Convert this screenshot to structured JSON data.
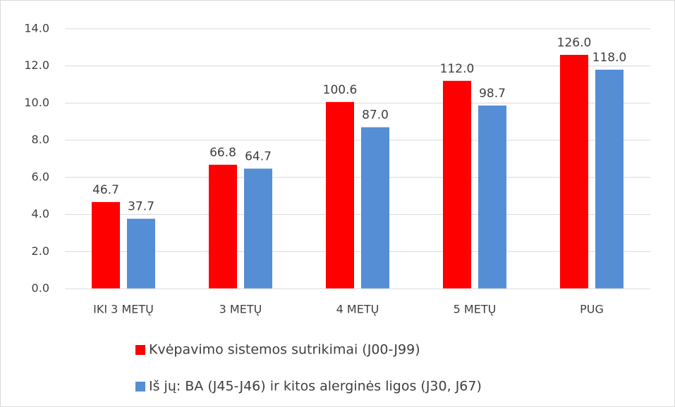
{
  "chart_data": {
    "type": "bar",
    "categories": [
      "IKI 3 METŲ",
      "3 METŲ",
      "4 METŲ",
      "5 METŲ",
      "PUG"
    ],
    "series": [
      {
        "name": "Kvėpavimo sistemos sutrikimai (J00-J99)",
        "color": "#ff0000",
        "values": [
          4.67,
          6.68,
          10.06,
          11.2,
          12.6
        ],
        "value_labels": [
          "46.7",
          "66.8",
          "100.6",
          "112.0",
          "126.0"
        ]
      },
      {
        "name": "Iš jų: BA (J45-J46) ir kitos alerginės ligos (J30, J67)",
        "color": "#558ed5",
        "values": [
          3.77,
          6.47,
          8.7,
          9.87,
          11.8
        ],
        "value_labels": [
          "37.7",
          "64.7",
          "87.0",
          "98.7",
          "118.0"
        ]
      }
    ],
    "ylim": [
      0,
      14
    ],
    "yticks": [
      {
        "value": 0,
        "label": "0.0"
      },
      {
        "value": 2,
        "label": "2.0"
      },
      {
        "value": 4,
        "label": "4.0"
      },
      {
        "value": 6,
        "label": "6.0"
      },
      {
        "value": 8,
        "label": "8.0"
      },
      {
        "value": 10,
        "label": "10.0"
      },
      {
        "value": 12,
        "label": "12.0"
      },
      {
        "value": 14,
        "label": "14.0"
      }
    ],
    "grid": true,
    "legend": "bottom"
  }
}
